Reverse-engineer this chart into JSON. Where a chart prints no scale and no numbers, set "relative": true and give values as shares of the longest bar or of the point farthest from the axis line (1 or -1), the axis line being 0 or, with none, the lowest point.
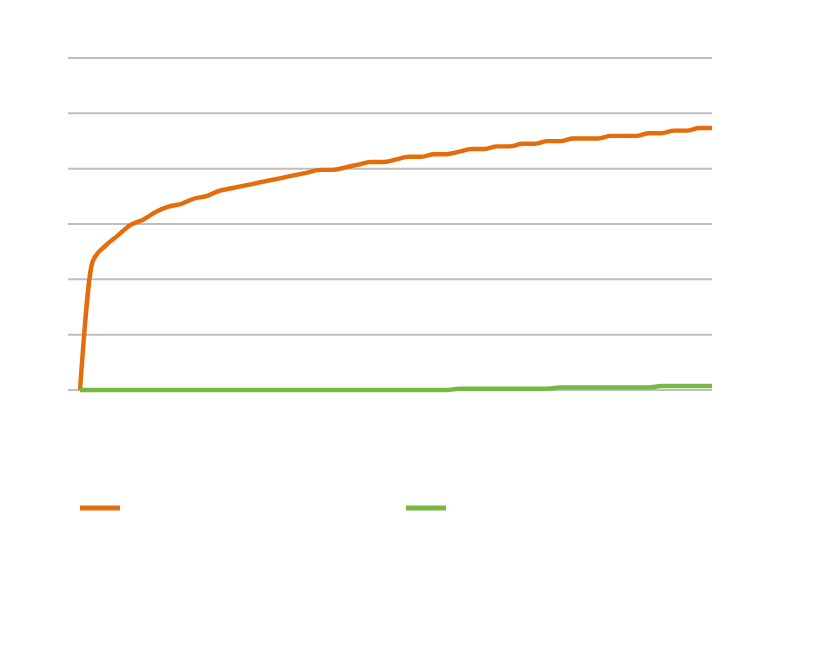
{
  "chart_data": {
    "type": "line",
    "relative": true,
    "grid": "y",
    "marker": "none",
    "line_style": "solid",
    "categories": [
      null,
      null,
      null,
      null,
      null,
      null,
      null,
      null,
      null,
      null,
      null,
      null,
      null,
      null,
      null,
      null,
      null,
      null,
      null,
      null,
      null,
      null,
      null,
      null,
      null,
      null,
      null,
      null,
      null,
      null,
      null,
      null,
      null,
      null,
      null,
      null,
      null,
      null,
      null,
      null,
      null,
      null,
      null,
      null,
      null,
      null,
      null,
      null,
      null,
      null,
      null
    ],
    "series": [
      {
        "color": "#e46c0a",
        "values": [
          0,
          0.49,
          0.55,
          0.59,
          0.63,
          0.65,
          0.68,
          0.7,
          0.71,
          0.73,
          0.74,
          0.76,
          0.77,
          0.78,
          0.79,
          0.8,
          0.81,
          0.82,
          0.83,
          0.84,
          0.84,
          0.85,
          0.86,
          0.87,
          0.87,
          0.88,
          0.89,
          0.89,
          0.9,
          0.9,
          0.91,
          0.92,
          0.92,
          0.93,
          0.93,
          0.94,
          0.94,
          0.95,
          0.95,
          0.96,
          0.96,
          0.96,
          0.97,
          0.97,
          0.97,
          0.98,
          0.98,
          0.99,
          0.99,
          1.0,
          1.0
        ]
      },
      {
        "color": "#77b843",
        "values": [
          0,
          0,
          0,
          0,
          0,
          0,
          0,
          0,
          0,
          0,
          0,
          0,
          0,
          0,
          0,
          0,
          0,
          0,
          0,
          0,
          0,
          0,
          0,
          0,
          0,
          0,
          0,
          0,
          0,
          0,
          0.005,
          0.005,
          0.005,
          0.005,
          0.005,
          0.005,
          0.005,
          0.005,
          0.01,
          0.01,
          0.01,
          0.01,
          0.01,
          0.01,
          0.01,
          0.01,
          0.015,
          0.015,
          0.015,
          0.015,
          0.015
        ]
      }
    ]
  }
}
